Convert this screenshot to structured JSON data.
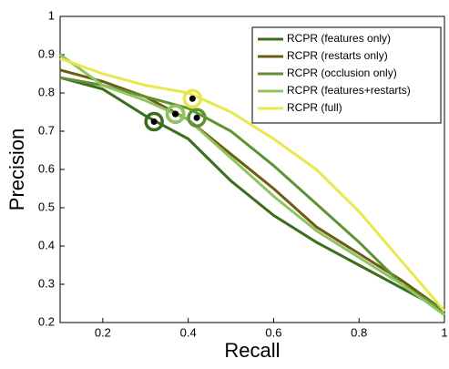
{
  "chart_data": {
    "type": "line",
    "xlabel": "Recall",
    "ylabel": "Precision",
    "xlim": [
      0.1,
      1
    ],
    "ylim": [
      0.2,
      1
    ],
    "xticks": [
      0.2,
      0.4,
      0.6,
      0.8,
      1
    ],
    "yticks": [
      0.2,
      0.3,
      0.4,
      0.5,
      0.6,
      0.7,
      0.8,
      0.9,
      1
    ],
    "legend": "upper right",
    "series": [
      {
        "name": "RCPR (features only)",
        "color": "#3b6e1b",
        "x": [
          0.1,
          0.2,
          0.3,
          0.4,
          0.5,
          0.6,
          0.7,
          0.8,
          0.9,
          1
        ],
        "values": [
          0.84,
          0.81,
          0.74,
          0.68,
          0.57,
          0.48,
          0.41,
          0.35,
          0.29,
          0.23
        ],
        "marker_x": 0.32,
        "marker_y": 0.725
      },
      {
        "name": "RCPR (restarts only)",
        "color": "#6e5c12",
        "x": [
          0.1,
          0.2,
          0.3,
          0.4,
          0.5,
          0.6,
          0.7,
          0.8,
          0.9,
          1
        ],
        "values": [
          0.86,
          0.83,
          0.79,
          0.73,
          0.64,
          0.55,
          0.45,
          0.38,
          0.31,
          0.23
        ],
        "marker_x": 0.37,
        "marker_y": 0.745
      },
      {
        "name": "RCPR (occlusion only)",
        "color": "#5f9232",
        "x": [
          0.1,
          0.2,
          0.3,
          0.4,
          0.5,
          0.6,
          0.7,
          0.8,
          0.9,
          1
        ],
        "values": [
          0.84,
          0.82,
          0.79,
          0.76,
          0.7,
          0.61,
          0.51,
          0.41,
          0.3,
          0.23
        ],
        "marker_x": 0.42,
        "marker_y": 0.735
      },
      {
        "name": "RCPR (features+restarts)",
        "color": "#90c462",
        "x": [
          0.1,
          0.2,
          0.3,
          0.4,
          0.5,
          0.6,
          0.7,
          0.8,
          0.9,
          1
        ],
        "values": [
          0.9,
          0.82,
          0.78,
          0.73,
          0.63,
          0.53,
          0.44,
          0.37,
          0.3,
          0.22
        ],
        "marker_x": 0.37,
        "marker_y": 0.745
      },
      {
        "name": "RCPR (full)",
        "color": "#e8e84c",
        "x": [
          0.1,
          0.2,
          0.3,
          0.4,
          0.5,
          0.6,
          0.7,
          0.8,
          0.9,
          1
        ],
        "values": [
          0.89,
          0.85,
          0.82,
          0.8,
          0.75,
          0.68,
          0.6,
          0.49,
          0.36,
          0.23
        ],
        "marker_x": 0.41,
        "marker_y": 0.785
      }
    ]
  }
}
